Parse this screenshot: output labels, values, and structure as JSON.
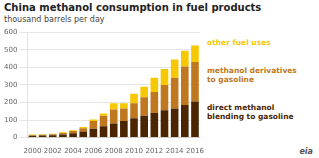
{
  "chart_data": {
    "type": "bar",
    "title": "China methanol consumption in fuel products",
    "subtitle": "thousand barrels per day",
    "categories": [
      "2000",
      null,
      "2002",
      null,
      "2004",
      null,
      "2006",
      null,
      "2008",
      null,
      "2010",
      null,
      "2012",
      null,
      "2014",
      null,
      "2016"
    ],
    "series": [
      {
        "name": "direct methanol\nblending to gasoline",
        "color": "#4a2500",
        "values": [
          10,
          12,
          14,
          18,
          25,
          35,
          50,
          65,
          80,
          95,
          110,
          125,
          140,
          155,
          165,
          185,
          205
        ]
      },
      {
        "name": "methanol derivatives\nto gasoline",
        "color": "#c07820",
        "values": [
          4,
          4,
          5,
          8,
          12,
          18,
          45,
          60,
          80,
          70,
          85,
          105,
          120,
          145,
          175,
          220,
          225
        ]
      },
      {
        "name": "other fuel uses",
        "color": "#f5c800",
        "values": [
          3,
          3,
          3,
          4,
          5,
          7,
          8,
          12,
          35,
          30,
          55,
          60,
          80,
          90,
          105,
          90,
          95
        ]
      }
    ],
    "stacked": true,
    "ylim": [
      0,
      600
    ],
    "yticks": [
      0,
      100,
      200,
      300,
      400,
      500,
      600
    ],
    "grid": true,
    "legend": "right",
    "annotations": [
      "eia"
    ]
  }
}
